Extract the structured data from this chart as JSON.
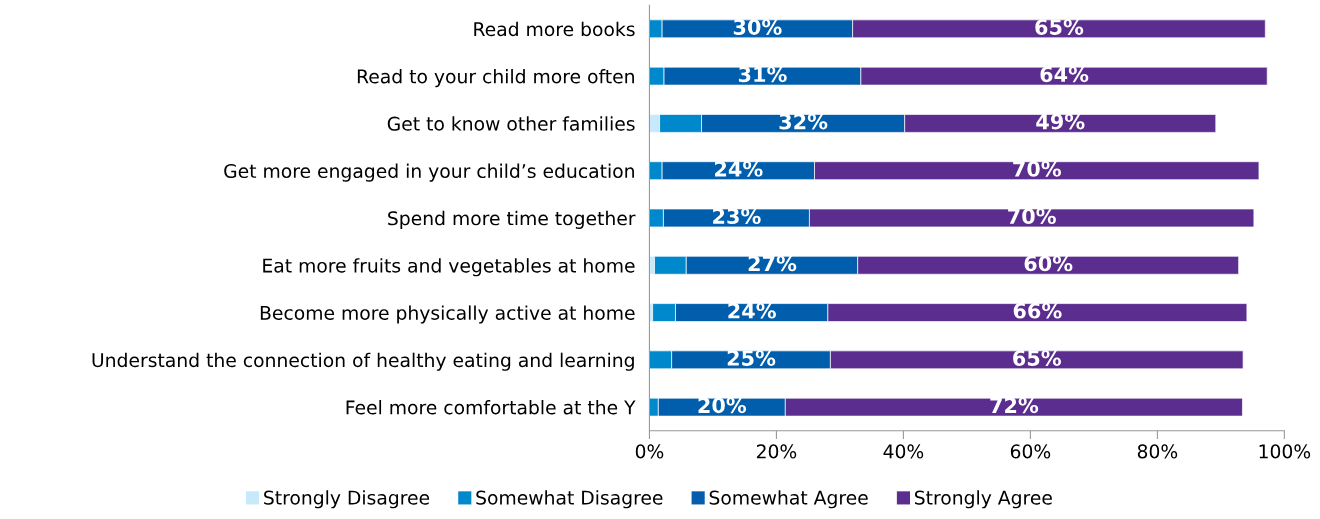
{
  "chart_data": {
    "type": "bar",
    "orientation": "horizontal",
    "stacked": true,
    "categories": [
      "Read more books",
      "Read to your child more often",
      "Get to know other families",
      "Get more engaged in your child’s education",
      "Spend more time together",
      "Eat more fruits and vegetables at home",
      "Become more physically active at home",
      "Understand the connection of healthy eating and learning",
      "Feel more comfortable at the Y"
    ],
    "series": [
      {
        "name": "Strongly Disagree",
        "color": "#c6eafa",
        "values": [
          0,
          0,
          1.6,
          0,
          0,
          0.8,
          0.5,
          0,
          0
        ]
      },
      {
        "name": "Somewhat Disagree",
        "color": "#0088cc",
        "values": [
          2,
          2.3,
          6.6,
          2,
          2.2,
          5,
          3.6,
          3.5,
          1.4
        ]
      },
      {
        "name": "Somewhat Agree",
        "color": "#005eac",
        "values": [
          30,
          31,
          32,
          24,
          23,
          27,
          24,
          25,
          20
        ],
        "value_labels": [
          "30%",
          "31%",
          "32%",
          "24%",
          "23%",
          "27%",
          "24%",
          "25%",
          "20%"
        ]
      },
      {
        "name": "Strongly Agree",
        "color": "#5b2d8e",
        "values": [
          65,
          64,
          49,
          70,
          70,
          60,
          66,
          65,
          72
        ],
        "value_labels": [
          "65%",
          "64%",
          "49%",
          "70%",
          "70%",
          "60%",
          "66%",
          "65%",
          "72%"
        ]
      }
    ],
    "xlim": [
      0,
      100
    ],
    "xticks": [
      {
        "value": 0,
        "label": "0%"
      },
      {
        "value": 20,
        "label": "20%"
      },
      {
        "value": 40,
        "label": "40%"
      },
      {
        "value": 60,
        "label": "60%"
      },
      {
        "value": 80,
        "label": "80%"
      },
      {
        "value": 100,
        "label": "100%"
      }
    ],
    "grid": false,
    "legend": "bottom"
  }
}
